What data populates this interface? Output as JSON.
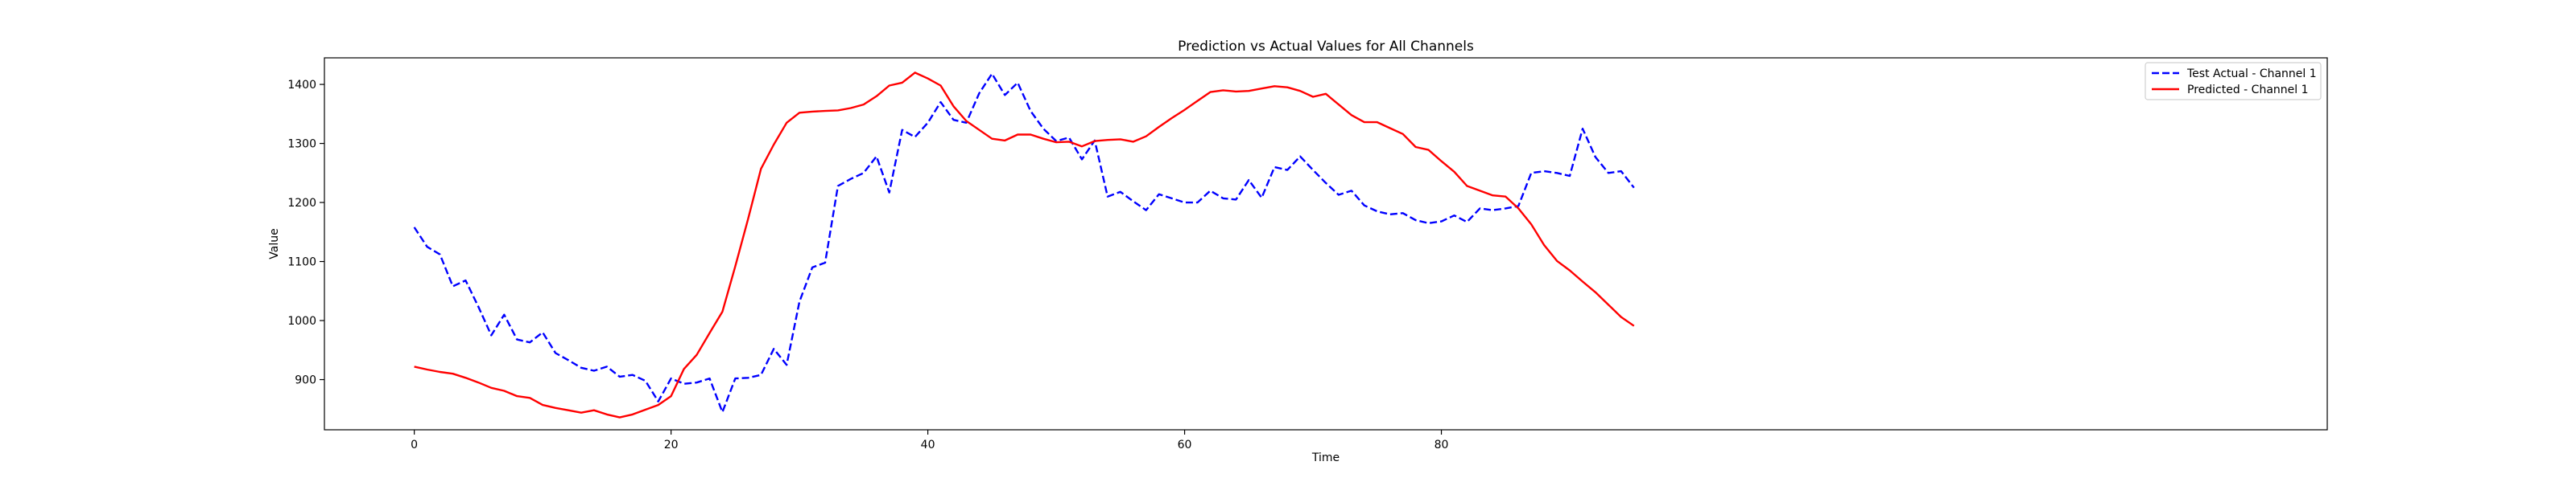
{
  "chart_data": {
    "type": "line",
    "title": "Prediction vs Actual Values for All Channels",
    "xlabel": "Time",
    "ylabel": "Value",
    "xlim": [
      -7,
      149
    ],
    "ylim": [
      815,
      1445
    ],
    "xticks": [
      0,
      20,
      40,
      60,
      80
    ],
    "yticks": [
      900,
      1000,
      1100,
      1200,
      1300,
      1400
    ],
    "grid": false,
    "legend": "top-right",
    "series": [
      {
        "name": "Test Actual - Channel 1",
        "color": "#0000ff",
        "style": "dashed",
        "x": [
          0,
          1,
          2,
          3,
          4,
          5,
          6,
          7,
          8,
          9,
          10,
          11,
          12,
          13,
          14,
          15,
          16,
          17,
          18,
          19,
          20,
          21,
          22,
          23,
          24,
          25,
          26,
          27,
          28,
          29,
          30,
          31,
          32,
          33,
          34,
          35,
          36,
          37,
          38,
          39,
          40,
          41,
          42,
          43,
          44,
          45,
          46,
          47,
          48,
          49,
          50,
          51,
          52,
          53,
          54,
          55,
          56,
          57,
          58,
          59,
          60,
          61,
          62,
          63,
          64,
          65,
          66,
          67,
          68,
          69,
          70,
          71,
          72,
          73,
          74,
          75,
          76,
          77,
          78,
          79,
          80,
          81,
          82,
          83,
          84,
          85,
          86,
          87,
          88,
          89,
          90,
          91,
          92,
          93,
          94,
          95
        ],
        "values": [
          1158,
          1125,
          1112,
          1058,
          1068,
          1023,
          975,
          1010,
          968,
          963,
          980,
          945,
          933,
          920,
          915,
          922,
          905,
          908,
          898,
          863,
          902,
          893,
          895,
          902,
          845,
          902,
          903,
          908,
          952,
          925,
          1032,
          1090,
          1098,
          1228,
          1240,
          1250,
          1278,
          1217,
          1323,
          1311,
          1335,
          1370,
          1340,
          1335,
          1385,
          1418,
          1382,
          1403,
          1355,
          1325,
          1304,
          1310,
          1273,
          1305,
          1210,
          1218,
          1202,
          1187,
          1214,
          1207,
          1200,
          1200,
          1220,
          1207,
          1205,
          1238,
          1208,
          1260,
          1255,
          1278,
          1255,
          1233,
          1213,
          1220,
          1195,
          1185,
          1180,
          1182,
          1170,
          1165,
          1168,
          1178,
          1167,
          1190,
          1187,
          1190,
          1194,
          1250,
          1253,
          1250,
          1245,
          1325,
          1277,
          1250,
          1253,
          1225
        ]
      },
      {
        "name": "Predicted - Channel 1",
        "color": "#ff0000",
        "style": "solid",
        "x": [
          0,
          1,
          2,
          3,
          4,
          5,
          6,
          7,
          8,
          9,
          10,
          11,
          12,
          13,
          14,
          15,
          16,
          17,
          18,
          19,
          20,
          21,
          22,
          23,
          24,
          25,
          26,
          27,
          28,
          29,
          30,
          31,
          32,
          33,
          34,
          35,
          36,
          37,
          38,
          39,
          40,
          41,
          42,
          43,
          44,
          45,
          46,
          47,
          48,
          49,
          50,
          51,
          52,
          53,
          54,
          55,
          56,
          57,
          58,
          59,
          60,
          61,
          62,
          63,
          64,
          65,
          66,
          67,
          68,
          69,
          70,
          71,
          72,
          73,
          74,
          75,
          76,
          77,
          78,
          79,
          80,
          81,
          82,
          83,
          84,
          85,
          86,
          87,
          88,
          89,
          90,
          91,
          92,
          93,
          94,
          95
        ],
        "values": [
          922,
          917,
          913,
          910,
          903,
          895,
          886,
          881,
          872,
          869,
          857,
          852,
          848,
          844,
          848,
          841,
          836,
          841,
          849,
          857,
          872,
          918,
          942,
          979,
          1015,
          1092,
          1172,
          1257,
          1298,
          1335,
          1352,
          1354,
          1355,
          1356,
          1360,
          1366,
          1380,
          1398,
          1403,
          1420,
          1410,
          1398,
          1363,
          1338,
          1323,
          1308,
          1305,
          1315,
          1315,
          1308,
          1302,
          1303,
          1295,
          1304,
          1306,
          1307,
          1303,
          1312,
          1328,
          1343,
          1357,
          1372,
          1387,
          1390,
          1388,
          1389,
          1393,
          1397,
          1395,
          1389,
          1379,
          1384,
          1366,
          1348,
          1336,
          1336,
          1326,
          1316,
          1294,
          1289,
          1270,
          1252,
          1228,
          1220,
          1212,
          1210,
          1190,
          1163,
          1128,
          1101,
          1085,
          1066,
          1048,
          1027,
          1006,
          991
        ]
      }
    ]
  }
}
